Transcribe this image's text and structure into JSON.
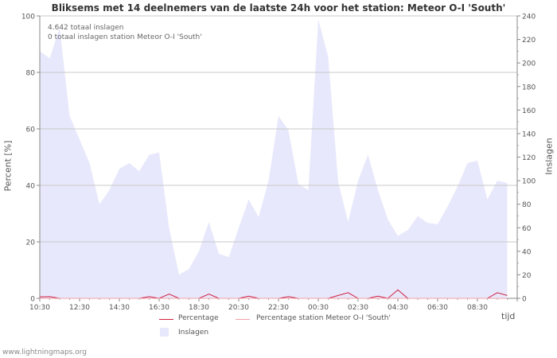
{
  "chart_data": {
    "type": "area",
    "title": "Bliksems met 14 deelnemers van de laatste 24h voor het station: Meteor O-I  'South'",
    "ylabel_left": "Percent   [%]",
    "ylabel_right": "Inslagen",
    "xlabel": "tijd",
    "ylim_left": [
      0,
      100
    ],
    "ylim_right": [
      0,
      240
    ],
    "yticks_left": [
      "0",
      "20",
      "40",
      "60",
      "80",
      "100"
    ],
    "yticks_right": [
      "0",
      "20",
      "40",
      "60",
      "80",
      "100",
      "120",
      "140",
      "160",
      "180",
      "200",
      "220",
      "240"
    ],
    "xticks": [
      "10:30",
      "12:30",
      "14:30",
      "16:30",
      "18:30",
      "20:30",
      "22:30",
      "00:30",
      "02:30",
      "04:30",
      "06:30",
      "08:30"
    ],
    "annotations": [
      "4.642 totaal inslagen",
      "0 totaal inslagen station Meteor O-I  'South'"
    ],
    "legend": [
      {
        "label": "Percentage",
        "color": "#d02040",
        "kind": "line"
      },
      {
        "label": "Percentage station Meteor O-I  'South'",
        "color": "#f0a0a8",
        "kind": "line"
      },
      {
        "label": "Inslagen",
        "color": "#e8e8fc",
        "kind": "area"
      }
    ],
    "x_hours": [
      0,
      0.5,
      1,
      1.5,
      2,
      2.5,
      3,
      3.5,
      4,
      4.5,
      5,
      5.5,
      6,
      6.5,
      7,
      7.5,
      8,
      8.5,
      9,
      9.5,
      10,
      10.5,
      11,
      11.5,
      12,
      12.5,
      13,
      13.5,
      14,
      14.5,
      15,
      15.5,
      16,
      16.5,
      17,
      17.5,
      18,
      18.5,
      19,
      19.5,
      20,
      20.5,
      21,
      21.5,
      22,
      22.5,
      23,
      23.5
    ],
    "series": [
      {
        "name": "Inslagen",
        "axis": "right",
        "values": [
          210,
          204,
          230,
          155,
          135,
          115,
          80,
          92,
          110,
          115,
          108,
          122,
          124,
          60,
          20,
          25,
          40,
          65,
          38,
          35,
          60,
          84,
          69,
          100,
          155,
          143,
          97,
          92,
          237,
          205,
          99,
          65,
          100,
          122,
          92,
          67,
          53,
          58,
          70,
          64,
          63,
          78,
          95,
          115,
          117,
          84,
          100,
          98
        ]
      },
      {
        "name": "Percentage",
        "axis": "left",
        "values": [
          0.5,
          0.6,
          0,
          0,
          0,
          0,
          0,
          0,
          0,
          0,
          0,
          0.6,
          0,
          1.5,
          0,
          0,
          0,
          1.5,
          0,
          0,
          0,
          0.8,
          0,
          0,
          0,
          0.6,
          0,
          0,
          0,
          0,
          1,
          2,
          0,
          0,
          0.8,
          0,
          3,
          0,
          0,
          0,
          0,
          0,
          0,
          0,
          0,
          0,
          2,
          1
        ]
      },
      {
        "name": "Percentage station Meteor O-I  'South'",
        "axis": "left",
        "values": [
          0,
          0,
          0,
          0,
          0,
          0,
          0,
          0,
          0,
          0,
          0,
          0,
          0,
          0,
          0,
          0,
          0,
          0,
          0,
          0,
          0,
          0,
          0,
          0,
          0,
          0,
          0,
          0,
          0,
          0,
          0,
          0,
          0,
          0,
          0,
          0,
          0,
          0,
          0,
          0,
          0,
          0,
          0,
          0,
          0,
          0,
          0,
          0
        ]
      }
    ]
  },
  "footer": "www.lightningmaps.org"
}
